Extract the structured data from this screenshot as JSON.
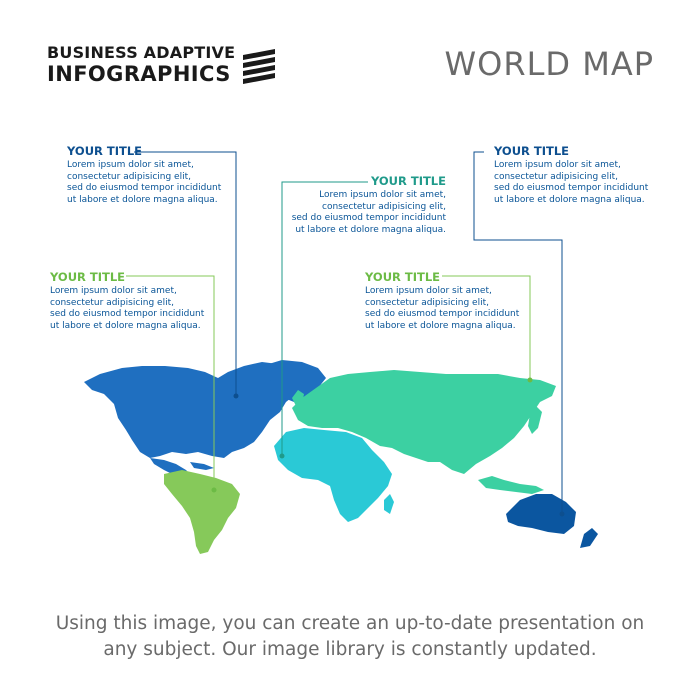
{
  "logo": {
    "line1": "BUSINESS ADAPTIVE",
    "line2": "INFOGRAPHICS",
    "mark_icon": "diagonal-stripes-icon"
  },
  "page_title": "WORLD MAP",
  "callouts": [
    {
      "id": "north-america",
      "title": "YOUR TITLE",
      "lines": [
        "Lorem ipsum dolor sit amet,",
        "consectetur adipisicing elit,",
        "sed do eiusmod tempor incididunt",
        "ut labore et dolore magna aliqua."
      ],
      "color": "#0d4f8f"
    },
    {
      "id": "europe",
      "title": "YOUR TITLE",
      "lines": [
        "Lorem ipsum dolor sit amet,",
        "consectetur adipisicing elit,",
        "sed do eiusmod tempor incididunt",
        "ut labore et dolore magna aliqua."
      ],
      "color": "#1f9a8a"
    },
    {
      "id": "australia",
      "title": "YOUR TITLE",
      "lines": [
        "Lorem ipsum dolor sit amet,",
        "consectetur adipisicing elit,",
        "sed do eiusmod tempor incididunt",
        "ut labore et dolore magna aliqua."
      ],
      "color": "#0d4f8f"
    },
    {
      "id": "south-america",
      "title": "YOUR TITLE",
      "lines": [
        "Lorem ipsum dolor sit amet,",
        "consectetur adipisicing elit,",
        "sed do eiusmod tempor incididunt",
        "ut labore et dolore magna aliqua."
      ],
      "color": "#6cbb45"
    },
    {
      "id": "asia",
      "title": "YOUR TITLE",
      "lines": [
        "Lorem ipsum dolor sit amet,",
        "consectetur adipisicing elit,",
        "sed do eiusmod tempor incididunt",
        "ut labore et dolore magna aliqua."
      ],
      "color": "#6cbb45"
    }
  ],
  "region_colors": {
    "north_america": "#1f6fc0",
    "south_america": "#86c95a",
    "europe_asia": "#3cd0a2",
    "africa": "#2ac9d6",
    "australia": "#0b56a0",
    "greenland": "#1f6fc0"
  },
  "footer": {
    "line1": "Using this image, you can create an up-to-date presentation on",
    "line2": "any subject. Our image library is constantly updated."
  }
}
